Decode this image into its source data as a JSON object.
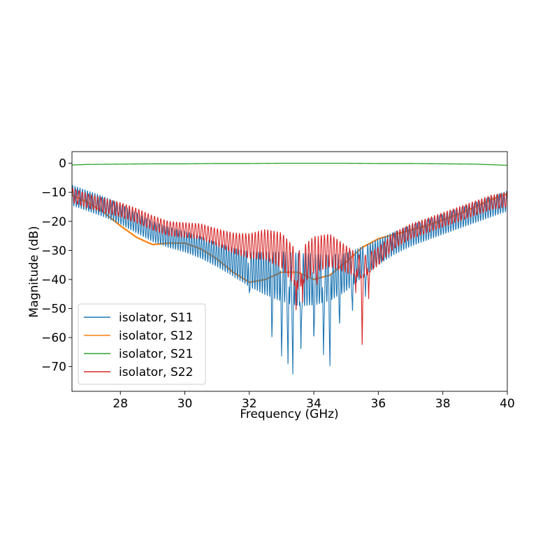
{
  "chart_data": {
    "type": "line",
    "xlabel": "Frequency (GHz)",
    "ylabel": "Magnitude (dB)",
    "xlim": [
      26.5,
      40
    ],
    "ylim": [
      -78.5,
      4
    ],
    "x_ticks": [
      "28",
      "30",
      "32",
      "34",
      "36",
      "38",
      "40"
    ],
    "y_ticks": [
      "0",
      "−10",
      "−20",
      "−30",
      "−40",
      "−50",
      "−60",
      "−70"
    ],
    "x_tick_values": [
      28,
      30,
      32,
      34,
      36,
      38,
      40
    ],
    "y_tick_values": [
      0,
      -10,
      -20,
      -30,
      -40,
      -50,
      -60,
      -70
    ],
    "grid": false,
    "legend_position": "lower-left",
    "series": [
      {
        "name": "isolator, S11",
        "color": "#1f77b4",
        "x": [
          26.5,
          27,
          27.5,
          28,
          28.5,
          29,
          29.5,
          30,
          30.5,
          31,
          31.5,
          32,
          32.5,
          33,
          33.5,
          34,
          34.5,
          35,
          35.5,
          36,
          36.5,
          37,
          37.5,
          38,
          38.5,
          39,
          39.5,
          40
        ],
        "values": [
          -11,
          -13,
          -15,
          -17.5,
          -20.5,
          -23.5,
          -25.5,
          -27,
          -29,
          -31.5,
          -34,
          -36.5,
          -38,
          -39,
          -40,
          -40,
          -39.5,
          -37.5,
          -34,
          -30.5,
          -27.5,
          -25,
          -23,
          -21,
          -19,
          -17,
          -15,
          -13
        ],
        "ripple_db": 3.5,
        "notches": [
          [
            32,
            -45
          ],
          [
            32.7,
            -60
          ],
          [
            33,
            -67
          ],
          [
            33.2,
            -71
          ],
          [
            33.35,
            -74
          ],
          [
            33.6,
            -66
          ],
          [
            34,
            -61
          ],
          [
            34.3,
            -67
          ],
          [
            34.5,
            -71
          ],
          [
            34.8,
            -56
          ],
          [
            35.2,
            -52
          ],
          [
            35.6,
            -47
          ]
        ]
      },
      {
        "name": "isolator, S12",
        "color": "#ff7f0e",
        "x": [
          26.5,
          27,
          27.5,
          28,
          28.5,
          29,
          29.5,
          30,
          30.5,
          31,
          31.5,
          32,
          32.5,
          33,
          33.5,
          34,
          34.5,
          35,
          35.5,
          36,
          36.5,
          37,
          37.5,
          38,
          38.5,
          39,
          39.5,
          40
        ],
        "values": [
          -11,
          -13.5,
          -17,
          -21.5,
          -25.5,
          -28,
          -27.5,
          -27.5,
          -29.5,
          -33,
          -37.5,
          -41,
          -40,
          -37.5,
          -37.5,
          -40,
          -38.5,
          -34,
          -29,
          -26,
          -24.5,
          -23,
          -21.5,
          -19.5,
          -17.5,
          -15,
          -12.5,
          -10.5
        ]
      },
      {
        "name": "isolator, S21",
        "color": "#2ca02c",
        "x": [
          26.5,
          27,
          28,
          29,
          30,
          31,
          32,
          33,
          34,
          35,
          36,
          37,
          38,
          39,
          39.5,
          40
        ],
        "values": [
          -0.6,
          -0.4,
          -0.3,
          -0.2,
          -0.2,
          -0.1,
          -0.1,
          0,
          0,
          0,
          -0.1,
          -0.1,
          -0.2,
          -0.3,
          -0.5,
          -0.7
        ]
      },
      {
        "name": "isolator, S22",
        "color": "#d62728",
        "x": [
          26.5,
          27,
          27.5,
          28,
          28.5,
          29,
          29.5,
          30,
          30.5,
          31,
          31.5,
          32,
          32.5,
          33,
          33.5,
          34,
          34.5,
          35,
          35.5,
          36,
          36.5,
          37,
          37.5,
          38,
          38.5,
          39,
          39.5,
          40
        ],
        "values": [
          -11,
          -13,
          -14.5,
          -16,
          -18,
          -20.5,
          -22.5,
          -23,
          -23.5,
          -25.5,
          -27.5,
          -28.5,
          -28,
          -30,
          -37,
          -31.5,
          -30,
          -33,
          -36,
          -32,
          -26.5,
          -23.5,
          -21.5,
          -19.5,
          -17.5,
          -15.5,
          -13.5,
          -12.5
        ],
        "ripple_db": 2.5,
        "notches": [
          [
            33.45,
            -52
          ],
          [
            33.65,
            -48
          ],
          [
            34.1,
            -42
          ],
          [
            35.3,
            -45
          ],
          [
            35.5,
            -64
          ],
          [
            35.7,
            -47
          ]
        ]
      }
    ]
  }
}
